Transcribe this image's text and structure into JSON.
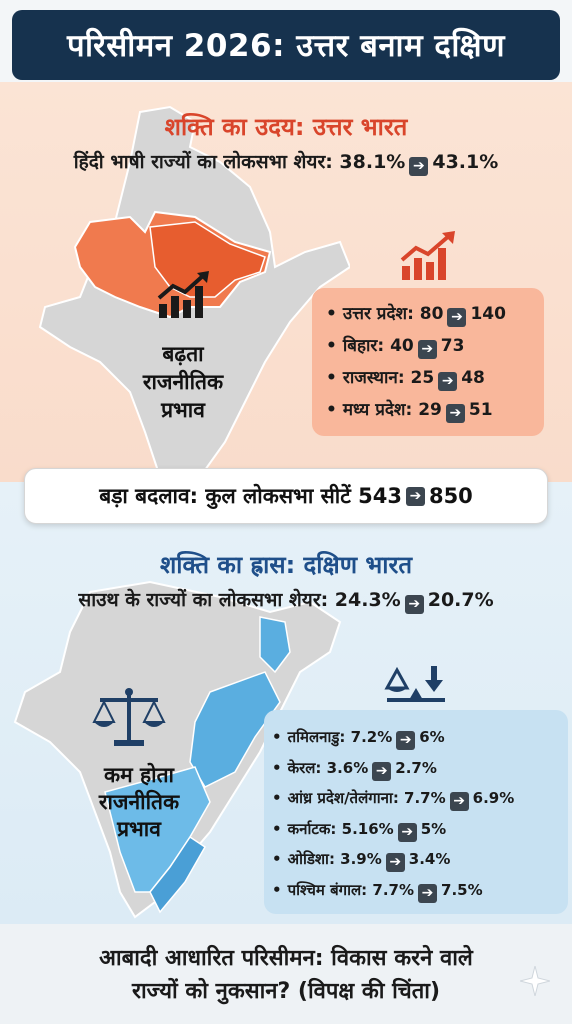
{
  "header": {
    "title": "परिसीमन 2026: उत्तर बनाम दक्षिण"
  },
  "north": {
    "title": "शक्ति का उदय: उत्तर भारत",
    "subtitle_prefix": "हिंदी भाषी राज्यों का लोकसभा शेयर: 38.1%",
    "subtitle_suffix": "43.1%",
    "label_lines": [
      "बढ़ता",
      "राजनीतिक",
      "प्रभाव"
    ],
    "states": [
      {
        "name": "उत्तर प्रदेश",
        "from": "80",
        "to": "140"
      },
      {
        "name": "बिहार",
        "from": "40",
        "to": "73"
      },
      {
        "name": "राजस्थान",
        "from": "25",
        "to": "48"
      },
      {
        "name": "मध्य प्रदेश",
        "from": "29",
        "to": "51"
      }
    ],
    "accent": "#d9452b",
    "highlight": "#f07a4e"
  },
  "banner": {
    "prefix": "बड़ा बदलाव: कुल लोकसभा सीटें 543",
    "suffix": "850"
  },
  "south": {
    "title": "शक्ति का ह्रास: दक्षिण भारत",
    "subtitle_prefix": "साउथ के राज्यों का लोकसभा शेयर: 24.3%",
    "subtitle_suffix": "20.7%",
    "label_lines": [
      "कम होता",
      "राजनीतिक",
      "प्रभाव"
    ],
    "states": [
      {
        "name": "तमिलनाडु",
        "from": "7.2%",
        "to": "6%"
      },
      {
        "name": "केरल",
        "from": "3.6%",
        "to": "2.7%"
      },
      {
        "name": "आंध्र प्रदेश/तेलंगाना",
        "from": "7.7%",
        "to": "6.9%"
      },
      {
        "name": "कर्नाटक",
        "from": "5.16%",
        "to": "5%"
      },
      {
        "name": "ओडिशा",
        "from": "3.9%",
        "to": "3.4%"
      },
      {
        "name": "पश्चिम बंगाल",
        "from": "7.7%",
        "to": "7.5%"
      }
    ],
    "accent": "#1f4f8a",
    "highlight": "#5aaee0"
  },
  "footer": {
    "line1": "आबादी आधारित परिसीमन: विकास करने वाले",
    "line2": "राज्यों को नुकसान? (विपक्ष की चिंता)"
  },
  "icons": [
    "growth-chart-icon",
    "balance-scale-icon",
    "scale-down-icon",
    "arrow-right-icon",
    "sparkle-icon"
  ]
}
